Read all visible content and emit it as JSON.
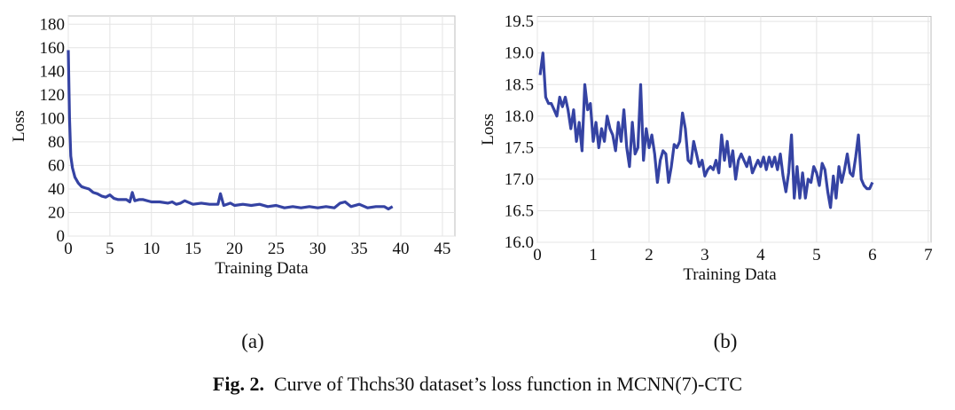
{
  "chart_data": [
    {
      "type": "line",
      "subcaption": "(a)",
      "x_label": "Training Data",
      "y_label": "Loss",
      "color": "#3543a3",
      "grid": true,
      "xlim": [
        0,
        46.5
      ],
      "ylim": [
        0,
        187
      ],
      "xticks": [
        0,
        5,
        10,
        15,
        20,
        25,
        30,
        35,
        40,
        45
      ],
      "yticks": [
        0,
        20,
        40,
        60,
        80,
        100,
        120,
        140,
        160,
        180
      ],
      "x": [
        0,
        0.15,
        0.3,
        0.5,
        0.8,
        1.2,
        1.6,
        2,
        2.5,
        3,
        3.5,
        4,
        4.5,
        5,
        5.5,
        6,
        7,
        7.4,
        7.7,
        8,
        8.5,
        9,
        10,
        11,
        12,
        12.5,
        13,
        13.5,
        14,
        15,
        16,
        17,
        18,
        18.3,
        18.7,
        19.5,
        20,
        21,
        22,
        23,
        24,
        25,
        26,
        27,
        28,
        29,
        30,
        31,
        32,
        32.7,
        33.3,
        34,
        35,
        36,
        37,
        38,
        38.5,
        39
      ],
      "values": [
        158,
        100,
        68,
        58,
        50,
        45,
        42,
        41,
        40,
        37,
        36,
        34,
        33,
        35,
        32,
        31,
        31,
        29,
        37,
        30,
        31,
        31,
        29,
        29,
        28,
        29,
        27,
        28,
        30,
        27,
        28,
        27,
        27,
        36,
        26,
        28,
        26,
        27,
        26,
        27,
        25,
        26,
        24,
        25,
        24,
        25,
        24,
        25,
        24,
        28,
        29,
        25,
        27,
        24,
        25,
        25,
        23,
        25
      ]
    },
    {
      "type": "line",
      "subcaption": "(b)",
      "x_label": "Training Data",
      "y_label": "Loss",
      "color": "#3543a3",
      "grid": true,
      "xlim": [
        0,
        7.05
      ],
      "ylim": [
        16,
        19.58
      ],
      "xticks": [
        0,
        1,
        2,
        3,
        4,
        5,
        6,
        7
      ],
      "yticks": [
        {
          "value": 16,
          "label": "16.0"
        },
        16.5,
        {
          "value": 17,
          "label": "17.0"
        },
        17.5,
        {
          "value": 18,
          "label": "18.0"
        },
        18.5,
        {
          "value": 19,
          "label": "19.0"
        },
        19.5
      ],
      "x": [
        0.05,
        0.1,
        0.15,
        0.2,
        0.25,
        0.3,
        0.35,
        0.4,
        0.45,
        0.5,
        0.55,
        0.6,
        0.65,
        0.7,
        0.75,
        0.8,
        0.85,
        0.9,
        0.95,
        1.0,
        1.05,
        1.1,
        1.15,
        1.2,
        1.25,
        1.3,
        1.35,
        1.4,
        1.45,
        1.5,
        1.55,
        1.6,
        1.65,
        1.7,
        1.75,
        1.8,
        1.85,
        1.9,
        1.95,
        2.0,
        2.05,
        2.1,
        2.15,
        2.2,
        2.25,
        2.3,
        2.35,
        2.4,
        2.45,
        2.5,
        2.55,
        2.6,
        2.65,
        2.7,
        2.75,
        2.8,
        2.85,
        2.9,
        2.95,
        3.0,
        3.05,
        3.1,
        3.15,
        3.2,
        3.25,
        3.3,
        3.35,
        3.4,
        3.45,
        3.5,
        3.55,
        3.6,
        3.65,
        3.7,
        3.75,
        3.8,
        3.85,
        3.9,
        3.95,
        4.0,
        4.05,
        4.1,
        4.15,
        4.2,
        4.25,
        4.3,
        4.35,
        4.4,
        4.45,
        4.5,
        4.55,
        4.6,
        4.65,
        4.7,
        4.75,
        4.8,
        4.85,
        4.9,
        4.95,
        5.0,
        5.05,
        5.1,
        5.15,
        5.2,
        5.25,
        5.3,
        5.35,
        5.4,
        5.45,
        5.5,
        5.55,
        5.6,
        5.65,
        5.7,
        5.75,
        5.8,
        5.85,
        5.9,
        5.95,
        6.0
      ],
      "values": [
        18.65,
        19.0,
        18.3,
        18.2,
        18.2,
        18.1,
        18.0,
        18.3,
        18.15,
        18.3,
        18.1,
        17.8,
        18.1,
        17.6,
        17.9,
        17.45,
        18.5,
        18.1,
        18.2,
        17.6,
        17.9,
        17.5,
        17.8,
        17.6,
        18.0,
        17.8,
        17.7,
        17.45,
        17.9,
        17.6,
        18.1,
        17.5,
        17.2,
        17.9,
        17.4,
        17.5,
        18.5,
        17.3,
        17.8,
        17.5,
        17.7,
        17.4,
        16.95,
        17.3,
        17.45,
        17.4,
        16.95,
        17.2,
        17.55,
        17.5,
        17.6,
        18.05,
        17.8,
        17.3,
        17.25,
        17.6,
        17.4,
        17.2,
        17.3,
        17.05,
        17.15,
        17.2,
        17.15,
        17.3,
        17.1,
        17.7,
        17.3,
        17.6,
        17.2,
        17.45,
        17.0,
        17.3,
        17.4,
        17.3,
        17.2,
        17.35,
        17.1,
        17.2,
        17.3,
        17.2,
        17.35,
        17.15,
        17.35,
        17.2,
        17.35,
        17.15,
        17.4,
        17.05,
        16.8,
        17.1,
        17.7,
        16.7,
        17.2,
        16.7,
        17.1,
        16.7,
        17.0,
        16.95,
        17.2,
        17.1,
        16.9,
        17.25,
        17.15,
        16.8,
        16.55,
        17.05,
        16.7,
        17.2,
        16.95,
        17.15,
        17.4,
        17.1,
        17.05,
        17.35,
        17.7,
        17.0,
        16.9,
        16.85,
        16.85,
        16.95
      ]
    }
  ],
  "caption": {
    "label": "Fig. 2.",
    "text": "Curve of Thchs30 dataset’s loss function in MCNN(7)-CTC"
  }
}
